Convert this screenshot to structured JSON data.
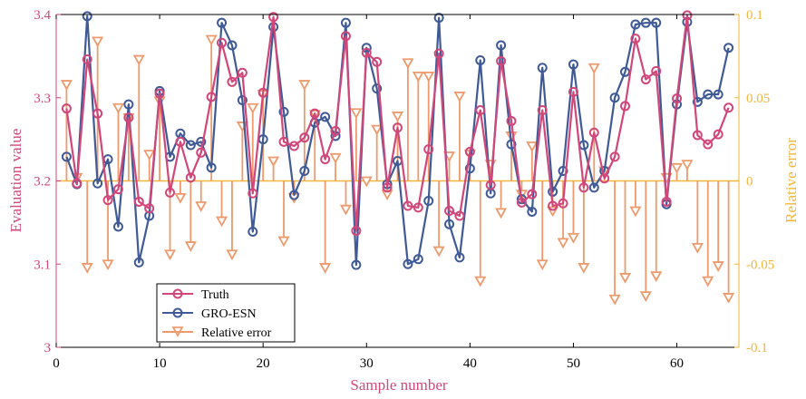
{
  "chart_data": {
    "type": "line",
    "xlabel": "Sample number",
    "ylabel_left": "Evaluation value",
    "ylabel_right": "Relative error",
    "xlim": [
      0,
      66
    ],
    "ylim_left": [
      3.0,
      3.4
    ],
    "ylim_right": [
      -0.1,
      0.1
    ],
    "x_ticks": [
      0,
      10,
      20,
      30,
      40,
      50,
      60
    ],
    "x_tick_labels": [
      "0",
      "10",
      "20",
      "30",
      "40",
      "50",
      "60"
    ],
    "y_left_ticks": [
      3.0,
      3.1,
      3.2,
      3.3,
      3.4
    ],
    "y_left_tick_labels": [
      "3",
      "3.1",
      "3.2",
      "3.3",
      "3.4"
    ],
    "y_right_ticks": [
      -0.1,
      -0.05,
      0,
      0.05,
      0.1
    ],
    "y_right_tick_labels": [
      "-0.1",
      "-0.05",
      "0",
      "0.05",
      "0.1"
    ],
    "grid": false,
    "legend_position": "bottom-left",
    "colors": {
      "truth": "#D2477A",
      "model": "#3F5A96",
      "error": "#EE9A6C",
      "right_axis": "#F2B63A",
      "left_label": "#D2477A"
    },
    "x": [
      1,
      2,
      3,
      4,
      5,
      6,
      7,
      8,
      9,
      10,
      11,
      12,
      13,
      14,
      15,
      16,
      17,
      18,
      19,
      20,
      21,
      22,
      23,
      24,
      25,
      26,
      27,
      28,
      29,
      30,
      31,
      32,
      33,
      34,
      35,
      36,
      37,
      38,
      39,
      40,
      41,
      42,
      43,
      44,
      45,
      46,
      47,
      48,
      49,
      50,
      51,
      52,
      53,
      54,
      55,
      56,
      57,
      58,
      59,
      60,
      61,
      62,
      63,
      64,
      65
    ],
    "series": [
      {
        "name": "Truth",
        "axis": "left",
        "marker": "circle",
        "values": [
          3.287,
          3.197,
          3.346,
          3.281,
          3.177,
          3.19,
          3.276,
          3.175,
          3.167,
          3.305,
          3.186,
          3.247,
          3.204,
          3.234,
          3.301,
          3.366,
          3.319,
          3.33,
          3.185,
          3.306,
          3.397,
          3.247,
          3.242,
          3.252,
          3.281,
          3.226,
          3.26,
          3.374,
          3.14,
          3.354,
          3.343,
          3.192,
          3.264,
          3.17,
          3.168,
          3.238,
          3.353,
          3.164,
          3.158,
          3.235,
          3.285,
          3.195,
          3.344,
          3.272,
          3.174,
          3.184,
          3.285,
          3.17,
          3.173,
          3.307,
          3.192,
          3.258,
          3.203,
          3.229,
          3.29,
          3.371,
          3.322,
          3.332,
          3.175,
          3.299,
          3.399,
          3.255,
          3.244,
          3.256,
          3.288
        ]
      },
      {
        "name": "GRO-ESN",
        "axis": "left",
        "marker": "circle",
        "values": [
          3.229,
          3.196,
          3.398,
          3.197,
          3.226,
          3.145,
          3.292,
          3.102,
          3.158,
          3.308,
          3.229,
          3.257,
          3.243,
          3.247,
          3.216,
          3.39,
          3.363,
          3.297,
          3.139,
          3.25,
          3.385,
          3.283,
          3.183,
          3.212,
          3.27,
          3.277,
          3.254,
          3.39,
          3.099,
          3.36,
          3.311,
          3.196,
          3.224,
          3.1,
          3.106,
          3.176,
          3.396,
          3.148,
          3.108,
          3.215,
          3.345,
          3.185,
          3.363,
          3.244,
          3.178,
          3.163,
          3.336,
          3.187,
          3.212,
          3.34,
          3.243,
          3.192,
          3.212,
          3.3,
          3.331,
          3.388,
          3.39,
          3.39,
          3.172,
          3.292,
          3.391,
          3.295,
          3.304,
          3.304,
          3.36
        ]
      },
      {
        "name": "Relative error",
        "axis": "right",
        "marker": "triangle-down",
        "stem": true,
        "values": [
          0.058,
          0.002,
          -0.052,
          0.084,
          -0.05,
          0.044,
          0.038,
          0.073,
          0.016,
          0.048,
          -0.044,
          -0.01,
          -0.039,
          -0.015,
          0.085,
          -0.024,
          -0.044,
          0.033,
          0.044,
          0.052,
          0.012,
          -0.036,
          -0.01,
          0.058,
          0.04,
          -0.052,
          0.014,
          -0.017,
          0.041,
          0.0,
          0.031,
          -0.008,
          0.039,
          0.071,
          0.063,
          0.063,
          -0.042,
          0.015,
          0.051,
          0.016,
          -0.06,
          0.01,
          -0.019,
          0.027,
          -0.008,
          0.021,
          -0.05,
          -0.018,
          -0.037,
          -0.034,
          -0.052,
          0.068,
          0.006,
          -0.071,
          -0.058,
          -0.018,
          -0.069,
          -0.057,
          0.002,
          0.008,
          0.01,
          -0.04,
          -0.06,
          -0.051,
          -0.07
        ]
      }
    ]
  },
  "legend": {
    "items": [
      {
        "label": "Truth"
      },
      {
        "label": "GRO-ESN"
      },
      {
        "label": "Relative error"
      }
    ]
  }
}
